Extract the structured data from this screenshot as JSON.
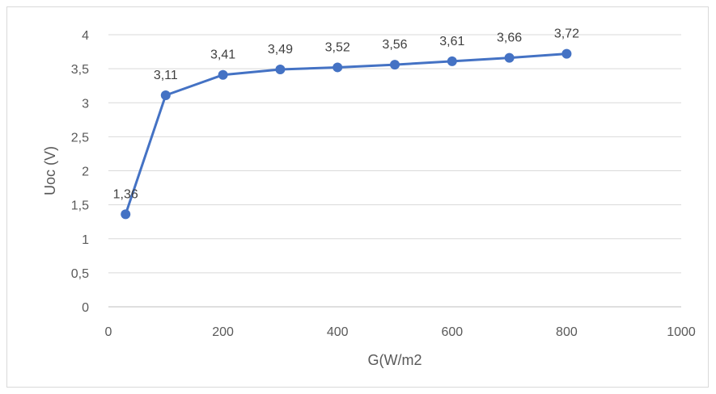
{
  "chart_data": {
    "type": "line",
    "title": "",
    "xlabel": "G(W/m2",
    "ylabel": "Uoc (V)",
    "xlim": [
      0,
      1000
    ],
    "ylim": [
      0,
      4
    ],
    "x_ticks": [
      "0",
      "200",
      "400",
      "600",
      "800",
      "1000"
    ],
    "y_ticks": [
      "0",
      "0,5",
      "1",
      "1,5",
      "2",
      "2,5",
      "3",
      "3,5",
      "4"
    ],
    "grid": "horizontal",
    "legend": "none",
    "color": "#4472c4",
    "series": [
      {
        "x": [
          30,
          100,
          200,
          300,
          400,
          500,
          600,
          700,
          800
        ],
        "y": [
          1.36,
          3.11,
          3.41,
          3.49,
          3.52,
          3.56,
          3.61,
          3.66,
          3.72
        ],
        "labels": [
          "1,36",
          "3,11",
          "3,41",
          "3,49",
          "3,52",
          "3,56",
          "3,61",
          "3,66",
          "3,72"
        ]
      }
    ]
  }
}
